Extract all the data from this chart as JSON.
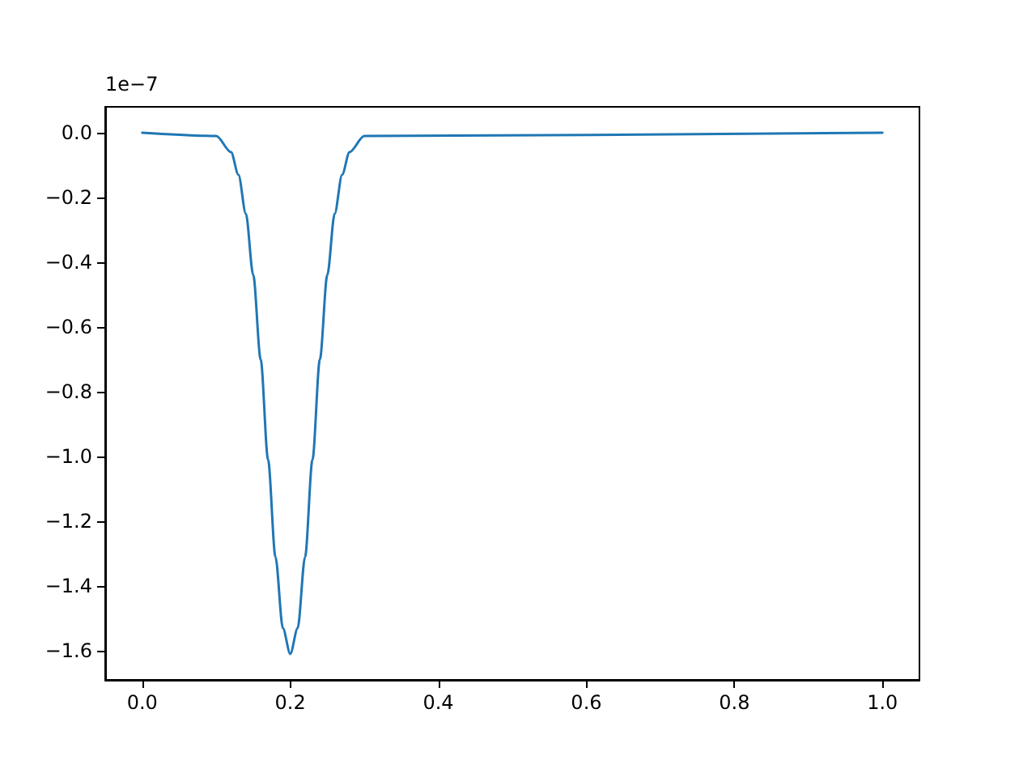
{
  "chart_data": {
    "type": "line",
    "x": [
      0,
      0.1,
      0.12,
      0.13,
      0.14,
      0.15,
      0.16,
      0.17,
      0.18,
      0.19,
      0.2,
      0.21,
      0.22,
      0.23,
      0.24,
      0.25,
      0.26,
      0.27,
      0.28,
      0.3,
      1.0
    ],
    "series": [
      {
        "color": "#1f77b4",
        "values": [
          0,
          -0.01,
          -0.06,
          -0.13,
          -0.25,
          -0.44,
          -0.7,
          -1.01,
          -1.31,
          -1.53,
          -1.61,
          -1.53,
          -1.31,
          -1.01,
          -0.7,
          -0.44,
          -0.25,
          -0.13,
          -0.06,
          -0.01,
          0
        ]
      }
    ],
    "xlim": [
      -0.05,
      1.05
    ],
    "xticks": [
      {
        "value": 0,
        "label": "0.0"
      },
      0.2,
      0.4,
      0.6,
      0.8,
      {
        "value": 1,
        "label": "1.0"
      }
    ],
    "ylim": [
      -1.69,
      0.08
    ],
    "yticks": [
      {
        "value": 0,
        "label": "0.0"
      },
      {
        "value": -0.2,
        "label": "−0.2"
      },
      {
        "value": -0.4,
        "label": "−0.4"
      },
      {
        "value": -0.6,
        "label": "−0.6"
      },
      {
        "value": -0.8,
        "label": "−0.8"
      },
      {
        "value": -1.0,
        "label": "−1.0"
      },
      {
        "value": -1.2,
        "label": "−1.2"
      },
      {
        "value": -1.4,
        "label": "−1.4"
      },
      {
        "value": -1.6,
        "label": "−1.6"
      }
    ],
    "annotations": [
      "1e−7"
    ],
    "grid": false,
    "marker": "none",
    "line_style": "solid"
  }
}
